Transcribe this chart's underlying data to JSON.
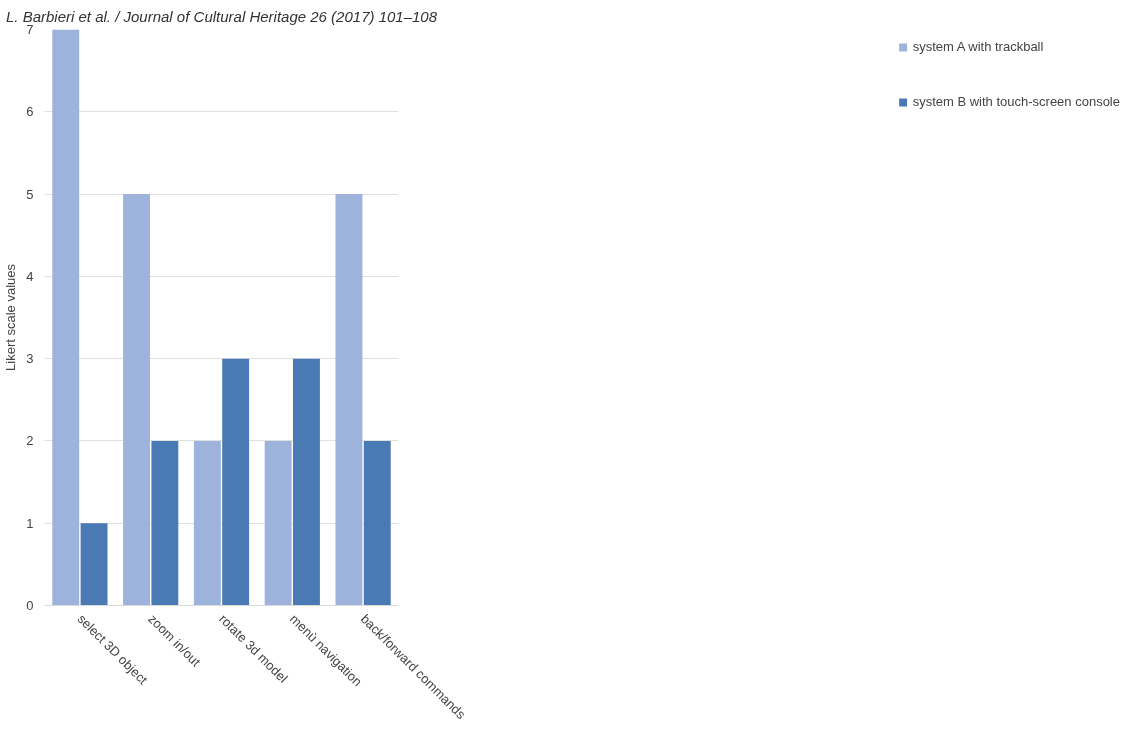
{
  "chart_data": {
    "type": "bar",
    "annotations": [
      "L. Barbieri et al. / Journal of Cultural Heritage 26 (2017) 101–108"
    ],
    "ylabel": "Likert scale values",
    "categories": [
      "select 3D object",
      "zoom in/out",
      "rotate 3d model",
      "menù navigation",
      "back/forward commands"
    ],
    "series": [
      {
        "name": "system A with trackball",
        "color": "#9db3dc",
        "values": [
          7,
          5,
          2,
          2,
          5
        ]
      },
      {
        "name": "system B with touch-screen console",
        "color": "#4a7ab4",
        "values": [
          1,
          2,
          3,
          3,
          2
        ]
      }
    ],
    "ylim": [
      0,
      7
    ],
    "yticks": [
      0,
      1,
      2,
      3,
      4,
      5,
      6,
      7
    ],
    "grid": "y",
    "legend": "right"
  }
}
